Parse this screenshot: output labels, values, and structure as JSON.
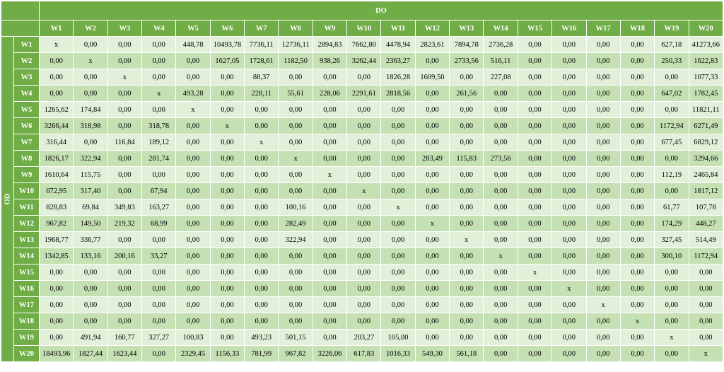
{
  "header": {
    "do_label": "DO",
    "od_label": "OD"
  },
  "columns": [
    "W1",
    "W2",
    "W3",
    "W4",
    "W5",
    "W6",
    "W7",
    "W8",
    "W9",
    "W10",
    "W11",
    "W12",
    "W13",
    "W14",
    "W15",
    "W16",
    "W17",
    "W18",
    "W19",
    "W20"
  ],
  "rows": [
    {
      "label": "W1",
      "cells": [
        "x",
        "0,00",
        "0,00",
        "0,00",
        "448,78",
        "10493,78",
        "7736,11",
        "12736,11",
        "2894,83",
        "7662,80",
        "4478,94",
        "2823,61",
        "7894,78",
        "2736,28",
        "0,00",
        "0,00",
        "0,00",
        "0,00",
        "627,18",
        "41273,66"
      ]
    },
    {
      "label": "W2",
      "cells": [
        "0,00",
        "x",
        "0,00",
        "0,00",
        "0,00",
        "1627,05",
        "1728,61",
        "1182,50",
        "938,26",
        "3262,44",
        "2363,27",
        "0,00",
        "2733,56",
        "516,11",
        "0,00",
        "0,00",
        "0,00",
        "0,00",
        "250,33",
        "1622,83"
      ]
    },
    {
      "label": "W3",
      "cells": [
        "0,00",
        "0,00",
        "x",
        "0,00",
        "0,00",
        "0,00",
        "88,37",
        "0,00",
        "0,00",
        "0,00",
        "1826,28",
        "1609,50",
        "0,00",
        "227,08",
        "0,00",
        "0,00",
        "0,00",
        "0,00",
        "0,00",
        "1077,33"
      ]
    },
    {
      "label": "W4",
      "cells": [
        "0,00",
        "0,00",
        "0,00",
        "x",
        "493,28",
        "0,00",
        "228,11",
        "55,61",
        "228,06",
        "2291,61",
        "2818,56",
        "0,00",
        "261,56",
        "0,00",
        "0,00",
        "0,00",
        "0,00",
        "0,00",
        "647,02",
        "1782,45"
      ]
    },
    {
      "label": "W5",
      "cells": [
        "1265,62",
        "174,84",
        "0,00",
        "0,00",
        "x",
        "0,00",
        "0,00",
        "0,00",
        "0,00",
        "0,00",
        "0,00",
        "0,00",
        "0,00",
        "0,00",
        "0,00",
        "0,00",
        "0,00",
        "0,00",
        "0,00",
        "11821,11"
      ]
    },
    {
      "label": "W6",
      "cells": [
        "3266,44",
        "318,98",
        "0,00",
        "318,78",
        "0,00",
        "x",
        "0,00",
        "0,00",
        "0,00",
        "0,00",
        "0,00",
        "0,00",
        "0,00",
        "0,00",
        "0,00",
        "0,00",
        "0,00",
        "0,00",
        "1172,94",
        "6271,49"
      ]
    },
    {
      "label": "W7",
      "cells": [
        "316,44",
        "0,00",
        "116,84",
        "189,12",
        "0,00",
        "0,00",
        "x",
        "0,00",
        "0,00",
        "0,00",
        "0,00",
        "0,00",
        "0,00",
        "0,00",
        "0,00",
        "0,00",
        "0,00",
        "0,00",
        "677,45",
        "6829,12"
      ]
    },
    {
      "label": "W8",
      "cells": [
        "1826,17",
        "322,94",
        "0,00",
        "281,74",
        "0,00",
        "0,00",
        "0,00",
        "x",
        "0,00",
        "0,00",
        "0,00",
        "283,49",
        "115,83",
        "273,56",
        "0,00",
        "0,00",
        "0,00",
        "0,00",
        "0,00",
        "3294,66"
      ]
    },
    {
      "label": "W9",
      "cells": [
        "1610,64",
        "115,75",
        "0,00",
        "0,00",
        "0,00",
        "0,00",
        "0,00",
        "0,00",
        "x",
        "0,00",
        "0,00",
        "0,00",
        "0,00",
        "0,00",
        "0,00",
        "0,00",
        "0,00",
        "0,00",
        "112,19",
        "2465,84"
      ]
    },
    {
      "label": "W10",
      "cells": [
        "672,95",
        "317,40",
        "0,00",
        "67,94",
        "0,00",
        "0,00",
        "0,00",
        "0,00",
        "0,00",
        "x",
        "0,00",
        "0,00",
        "0,00",
        "0,00",
        "0,00",
        "0,00",
        "0,00",
        "0,00",
        "0,00",
        "1817,12"
      ]
    },
    {
      "label": "W11",
      "cells": [
        "828,83",
        "69,84",
        "349,83",
        "163,27",
        "0,00",
        "0,00",
        "0,00",
        "100,16",
        "0,00",
        "0,00",
        "x",
        "0,00",
        "0,00",
        "0,00",
        "0,00",
        "0,00",
        "0,00",
        "0,00",
        "61,77",
        "107,78"
      ]
    },
    {
      "label": "W12",
      "cells": [
        "967,82",
        "149,50",
        "219,32",
        "68,99",
        "0,00",
        "0,00",
        "0,00",
        "282,49",
        "0,00",
        "0,00",
        "0,00",
        "x",
        "0,00",
        "0,00",
        "0,00",
        "0,00",
        "0,00",
        "0,00",
        "174,29",
        "448,27"
      ]
    },
    {
      "label": "W13",
      "cells": [
        "1968,77",
        "336,77",
        "0,00",
        "0,00",
        "0,00",
        "0,00",
        "0,00",
        "322,94",
        "0,00",
        "0,00",
        "0,00",
        "0,00",
        "x",
        "0,00",
        "0,00",
        "0,00",
        "0,00",
        "0,00",
        "327,45",
        "514,49"
      ]
    },
    {
      "label": "W14",
      "cells": [
        "1342,85",
        "133,16",
        "200,16",
        "33,27",
        "0,00",
        "0,00",
        "0,00",
        "0,00",
        "0,00",
        "0,00",
        "0,00",
        "0,00",
        "0,00",
        "x",
        "0,00",
        "0,00",
        "0,00",
        "0,00",
        "300,10",
        "1172,94"
      ]
    },
    {
      "label": "W15",
      "cells": [
        "0,00",
        "0,00",
        "0,00",
        "0,00",
        "0,00",
        "0,00",
        "0,00",
        "0,00",
        "0,00",
        "0,00",
        "0,00",
        "0,00",
        "0,00",
        "0,00",
        "x",
        "0,00",
        "0,00",
        "0,00",
        "0,00",
        "0,00"
      ]
    },
    {
      "label": "W16",
      "cells": [
        "0,00",
        "0,00",
        "0,00",
        "0,00",
        "0,00",
        "0,00",
        "0,00",
        "0,00",
        "0,00",
        "0,00",
        "0,00",
        "0,00",
        "0,00",
        "0,00",
        "0,00",
        "x",
        "0,00",
        "0,00",
        "0,00",
        "0,00"
      ]
    },
    {
      "label": "W17",
      "cells": [
        "0,00",
        "0,00",
        "0,00",
        "0,00",
        "0,00",
        "0,00",
        "0,00",
        "0,00",
        "0,00",
        "0,00",
        "0,00",
        "0,00",
        "0,00",
        "0,00",
        "0,00",
        "0,00",
        "x",
        "0,00",
        "0,00",
        "0,00"
      ]
    },
    {
      "label": "W18",
      "cells": [
        "0,00",
        "0,00",
        "0,00",
        "0,00",
        "0,00",
        "0,00",
        "0,00",
        "0,00",
        "0,00",
        "0,00",
        "0,00",
        "0,00",
        "0,00",
        "0,00",
        "0,00",
        "0,00",
        "0,00",
        "x",
        "0,00",
        "0,00"
      ]
    },
    {
      "label": "W19",
      "cells": [
        "0,00",
        "491,94",
        "160,77",
        "327,27",
        "100,83",
        "0,00",
        "493,23",
        "501,15",
        "0,00",
        "203,27",
        "105,00",
        "0,00",
        "0,00",
        "0,00",
        "0,00",
        "0,00",
        "0,00",
        "0,00",
        "x",
        "0,00"
      ]
    },
    {
      "label": "W20",
      "cells": [
        "18493,96",
        "1827,44",
        "1623,44",
        "0,00",
        "2329,45",
        "1156,33",
        "781,99",
        "967,82",
        "3226,06",
        "617,83",
        "1016,33",
        "549,30",
        "561,18",
        "0,00",
        "0,00",
        "0,00",
        "0,00",
        "0,00",
        "0,00",
        "x"
      ]
    }
  ]
}
